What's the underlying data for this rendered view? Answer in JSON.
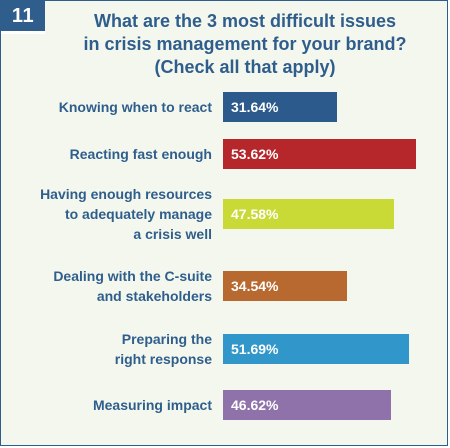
{
  "badge": "11",
  "title_lines": [
    "What are the 3 most difficult issues",
    "in crisis management for your brand?",
    "(Check all that apply)"
  ],
  "chart_data": {
    "type": "bar",
    "orientation": "horizontal",
    "title": "What are the 3 most difficult issues in crisis management for your brand? (Check all that apply)",
    "categories": [
      [
        "Knowing when to react"
      ],
      [
        "Reacting fast enough"
      ],
      [
        "Having enough resources",
        "to adequately manage",
        "a crisis well"
      ],
      [
        "Dealing with the C-suite",
        "and stakeholders"
      ],
      [
        "Preparing the",
        "right response"
      ],
      [
        "Measuring impact"
      ]
    ],
    "values": [
      31.64,
      53.62,
      47.58,
      34.54,
      51.69,
      46.62
    ],
    "value_labels": [
      "31.64%",
      "53.62%",
      "47.58%",
      "34.54%",
      "51.69%",
      "46.62%"
    ],
    "colors": [
      "#2c5a8c",
      "#b5272a",
      "#c9d935",
      "#b8692f",
      "#3196c9",
      "#8f72aa"
    ],
    "xlim": [
      0,
      53.62
    ],
    "grid": false,
    "legend": "none"
  }
}
